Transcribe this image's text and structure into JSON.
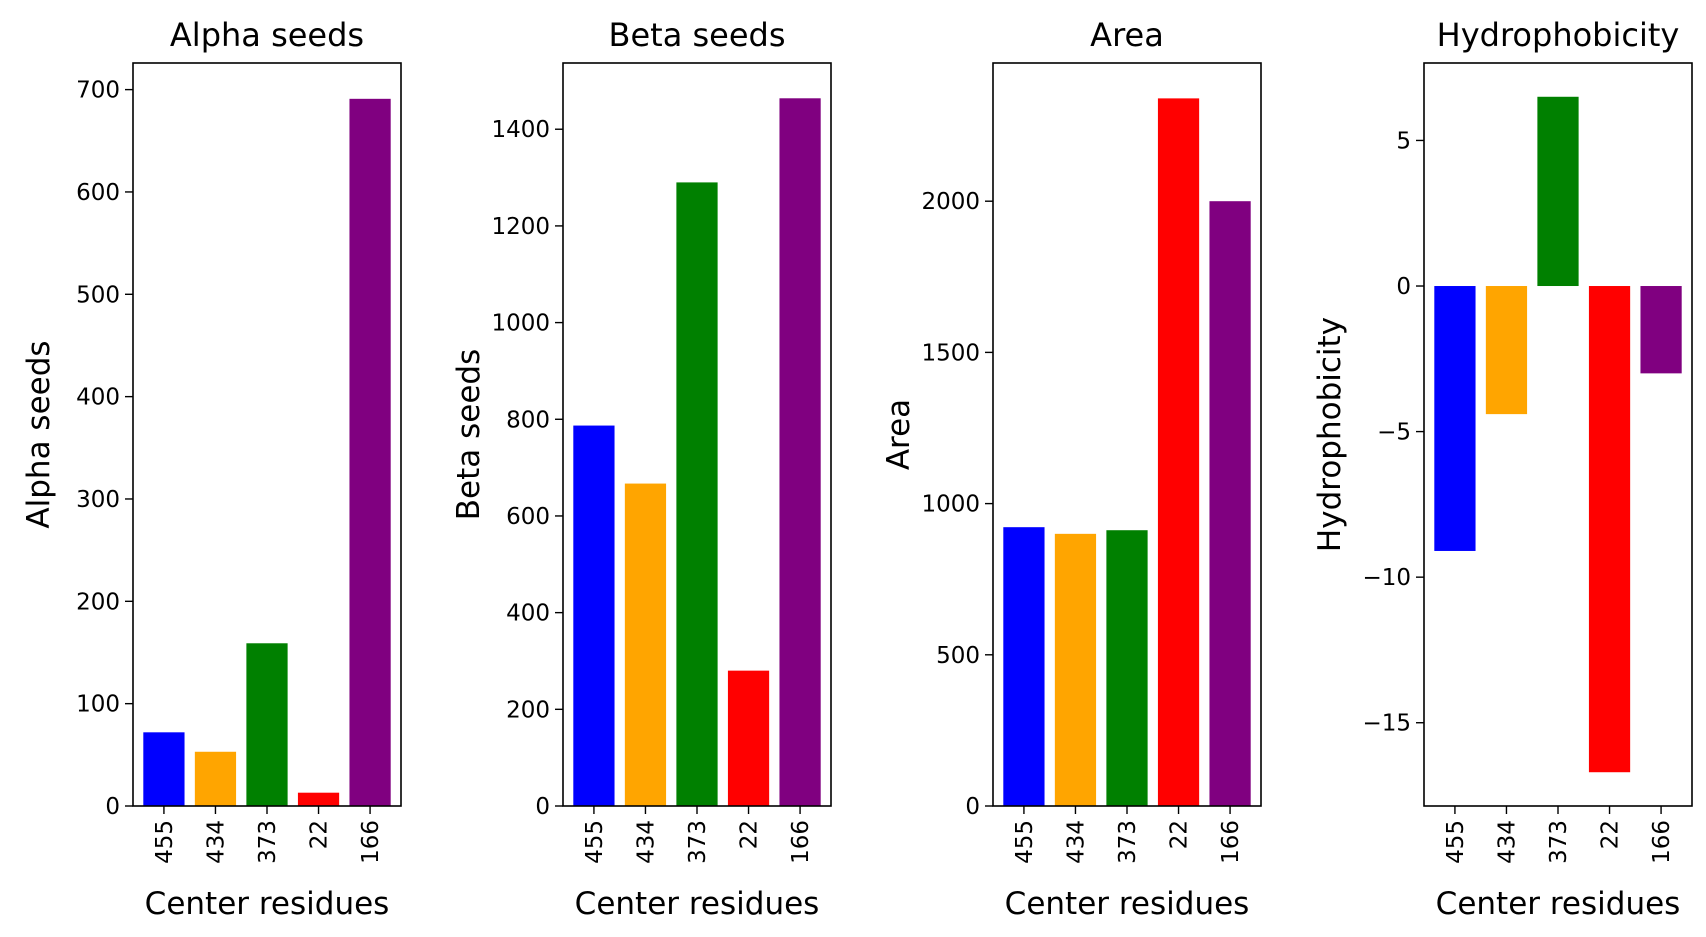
{
  "chart_data": [
    {
      "type": "bar",
      "title": "Alpha seeds",
      "xlabel": "Center residues",
      "ylabel": "Alpha seeds",
      "categories": [
        "455",
        "434",
        "373",
        "22",
        "166"
      ],
      "values": [
        72,
        53,
        159,
        13,
        691
      ],
      "colors": [
        "#0000ff",
        "#ffa500",
        "#008000",
        "#ff0000",
        "#800080"
      ],
      "ylim": [
        0,
        726
      ],
      "yticks": [
        0,
        100,
        200,
        300,
        400,
        500,
        600,
        700
      ],
      "ytick_labels": [
        "0",
        "100",
        "200",
        "300",
        "400",
        "500",
        "600",
        "700"
      ],
      "grid": false
    },
    {
      "type": "bar",
      "title": "Beta seeds",
      "xlabel": "Center residues",
      "ylabel": "Beta seeds",
      "categories": [
        "455",
        "434",
        "373",
        "22",
        "166"
      ],
      "values": [
        787,
        667,
        1290,
        280,
        1464
      ],
      "colors": [
        "#0000ff",
        "#ffa500",
        "#008000",
        "#ff0000",
        "#800080"
      ],
      "ylim": [
        0,
        1537
      ],
      "yticks": [
        0,
        200,
        400,
        600,
        800,
        1000,
        1200,
        1400
      ],
      "ytick_labels": [
        "0",
        "200",
        "400",
        "600",
        "800",
        "1000",
        "1200",
        "1400"
      ],
      "grid": false
    },
    {
      "type": "bar",
      "title": "Area",
      "xlabel": "Center residues",
      "ylabel": "Area",
      "categories": [
        "455",
        "434",
        "373",
        "22",
        "166"
      ],
      "values": [
        922,
        900,
        912,
        2340,
        2000
      ],
      "colors": [
        "#0000ff",
        "#ffa500",
        "#008000",
        "#ff0000",
        "#800080"
      ],
      "ylim": [
        0,
        2457
      ],
      "yticks": [
        0,
        500,
        1000,
        1500,
        2000
      ],
      "ytick_labels": [
        "0",
        "500",
        "1000",
        "1500",
        "2000"
      ],
      "grid": false
    },
    {
      "type": "bar",
      "title": "Hydrophobicity",
      "xlabel": "Center residues",
      "ylabel": "Hydrophobicity",
      "categories": [
        "455",
        "434",
        "373",
        "22",
        "166"
      ],
      "values": [
        -9.1,
        -4.4,
        6.5,
        -16.7,
        -3.0
      ],
      "colors": [
        "#0000ff",
        "#ffa500",
        "#008000",
        "#ff0000",
        "#800080"
      ],
      "ylim": [
        -17.86,
        7.66
      ],
      "yticks": [
        -15,
        -10,
        -5,
        0,
        5
      ],
      "ytick_labels": [
        "−15",
        "−10",
        "−5",
        "0",
        "5"
      ],
      "grid": false
    }
  ]
}
